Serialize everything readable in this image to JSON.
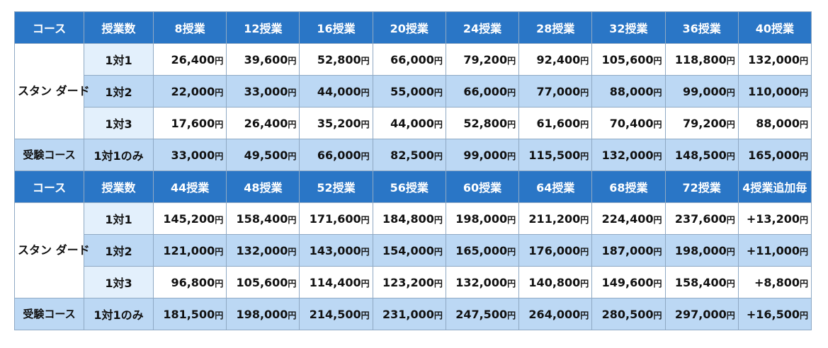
{
  "blocks": [
    {
      "headers": [
        "コース",
        "授業数",
        "8授業",
        "12授業",
        "16授業",
        "20授業",
        "24授業",
        "28授業",
        "32授業",
        "36授業",
        "40授業"
      ],
      "standard_label": "スタン ダード",
      "rows": [
        {
          "cls": "1対1",
          "values": [
            "26,400",
            "39,600",
            "52,800",
            "66,000",
            "79,200",
            "92,400",
            "105,600",
            "118,800",
            "132,000"
          ]
        },
        {
          "cls": "1対2",
          "values": [
            "22,000",
            "33,000",
            "44,000",
            "55,000",
            "66,000",
            "77,000",
            "88,000",
            "99,000",
            "110,000"
          ]
        },
        {
          "cls": "1対3",
          "values": [
            "17,600",
            "26,400",
            "35,200",
            "44,000",
            "52,800",
            "61,600",
            "70,400",
            "79,200",
            "88,000"
          ]
        }
      ],
      "exam": {
        "course": "受験コース",
        "cls": "1対1のみ",
        "values": [
          "33,000",
          "49,500",
          "66,000",
          "82,500",
          "99,000",
          "115,500",
          "132,000",
          "148,500",
          "165,000"
        ]
      }
    },
    {
      "headers": [
        "コース",
        "授業数",
        "44授業",
        "48授業",
        "52授業",
        "56授業",
        "60授業",
        "64授業",
        "68授業",
        "72授業",
        "4授業追加毎"
      ],
      "standard_label": "スタン ダード",
      "rows": [
        {
          "cls": "1対1",
          "values": [
            "145,200",
            "158,400",
            "171,600",
            "184,800",
            "198,000",
            "211,200",
            "224,400",
            "237,600",
            "+13,200"
          ]
        },
        {
          "cls": "1対2",
          "values": [
            "121,000",
            "132,000",
            "143,000",
            "154,000",
            "165,000",
            "176,000",
            "187,000",
            "198,000",
            "+11,000"
          ]
        },
        {
          "cls": "1対3",
          "values": [
            "96,800",
            "105,600",
            "114,400",
            "123,200",
            "132,000",
            "140,800",
            "149,600",
            "158,400",
            "+8,800"
          ]
        }
      ],
      "exam": {
        "course": "受験コース",
        "cls": "1対1のみ",
        "values": [
          "181,500",
          "198,000",
          "214,500",
          "231,000",
          "247,500",
          "264,000",
          "280,500",
          "297,000",
          "+16,500"
        ]
      }
    }
  ],
  "yen_suffix": "円"
}
